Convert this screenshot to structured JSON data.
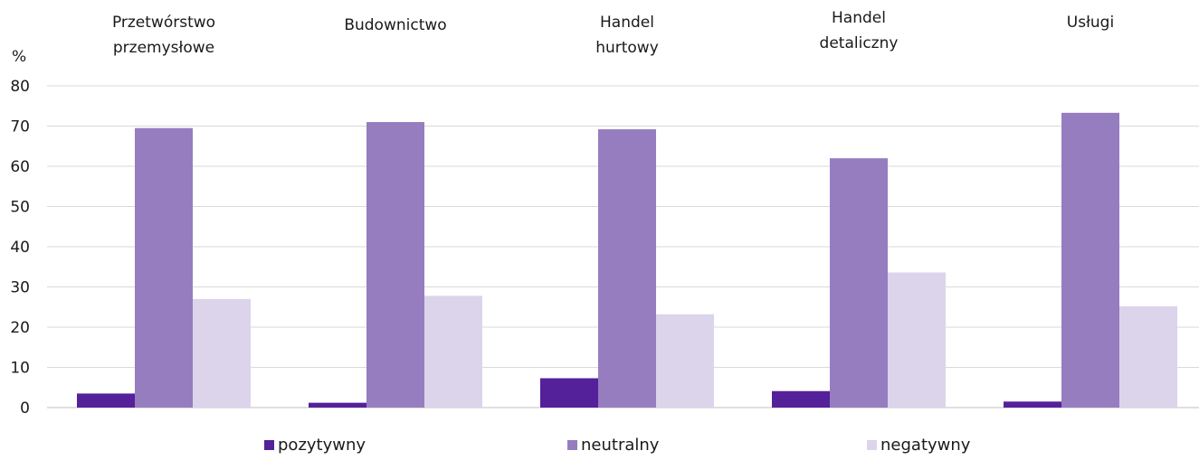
{
  "chart_data": {
    "type": "bar",
    "categories": [
      [
        "Przetwórstwo",
        "przemysłowe"
      ],
      [
        "Budownictwo"
      ],
      [
        "Handel",
        "hurtowy"
      ],
      [
        "Handel",
        "detaliczny"
      ],
      [
        "Usługi"
      ]
    ],
    "series": [
      {
        "name": "pozytywny",
        "color": "#54219a",
        "values": [
          3.5,
          1.2,
          7.3,
          4.1,
          1.5
        ]
      },
      {
        "name": "neutralny",
        "color": "#967dc0",
        "values": [
          69.5,
          71.0,
          69.2,
          62.0,
          73.3
        ]
      },
      {
        "name": "negatywny",
        "color": "#dcd4ea",
        "values": [
          27.0,
          27.8,
          23.2,
          33.6,
          25.2
        ]
      }
    ],
    "ylabel": "%",
    "ylim": [
      0,
      80
    ],
    "yticks": [
      0,
      10,
      20,
      30,
      40,
      50,
      60,
      70,
      80
    ],
    "grid": true,
    "legend_position": "bottom"
  }
}
